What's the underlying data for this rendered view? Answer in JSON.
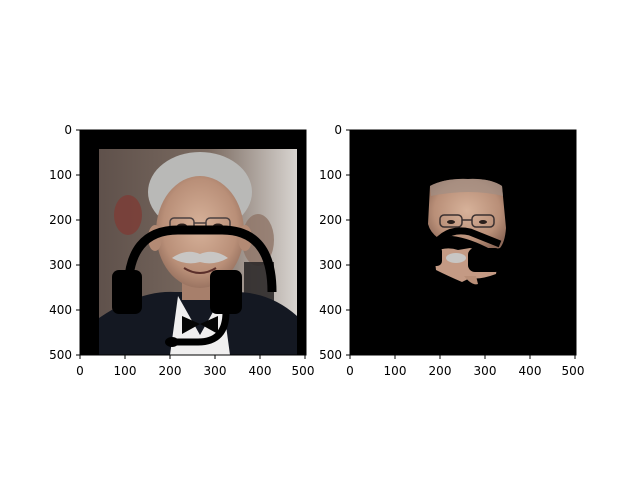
{
  "figure": {
    "background": "#ffffff",
    "panels": [
      {
        "id": "left",
        "content": "portrait-with-headset-overlay",
        "x_ticks": [
          "0",
          "100",
          "200",
          "300",
          "400",
          "500"
        ],
        "y_ticks": [
          "0",
          "100",
          "200",
          "300",
          "400",
          "500"
        ],
        "xlim": [
          0,
          500
        ],
        "ylim": [
          0,
          500
        ]
      },
      {
        "id": "right",
        "content": "masked-face-region",
        "x_ticks": [
          "0",
          "100",
          "200",
          "300",
          "400",
          "500"
        ],
        "y_ticks": [
          "0",
          "100",
          "200",
          "300",
          "400",
          "500"
        ],
        "xlim": [
          0,
          500
        ],
        "ylim": [
          0,
          500
        ]
      }
    ]
  },
  "colors": {
    "padding": "#000000",
    "headset": "#000000",
    "suit": "#141822",
    "skin": "#c9a38a",
    "hair": "#b9b9b7",
    "photo_bg": "#6c5b52"
  }
}
